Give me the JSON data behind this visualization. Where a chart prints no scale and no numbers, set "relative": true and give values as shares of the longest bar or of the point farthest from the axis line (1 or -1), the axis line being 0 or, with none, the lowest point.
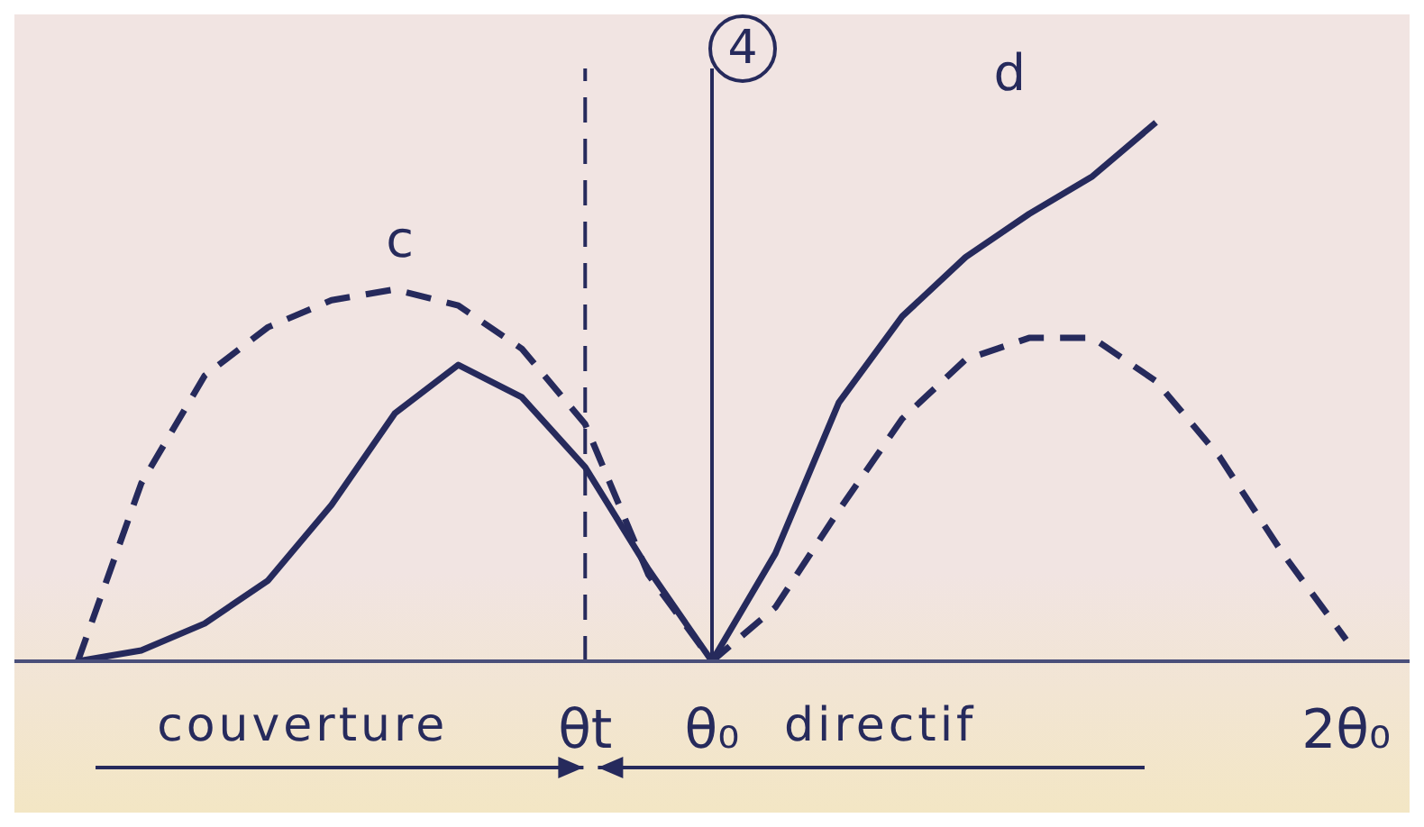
{
  "chart_data": {
    "type": "line",
    "relative": true,
    "legend": false,
    "categories": [
      null,
      null,
      null,
      null,
      null,
      null,
      null,
      null,
      null,
      "θt",
      null,
      "θ₀",
      null,
      null,
      null,
      null,
      null,
      null,
      null,
      null,
      null,
      "2θ₀",
      null
    ],
    "series": [
      {
        "name": "c",
        "color": "#262a5c",
        "line_style": "dashed",
        "values": [
          null,
          0,
          0.33,
          0.53,
          0.62,
          0.67,
          0.69,
          0.66,
          0.58,
          0.44,
          0.16,
          0,
          0.1,
          0.28,
          0.45,
          0.56,
          0.6,
          0.6,
          0.52,
          0.38,
          0.2,
          0.04,
          null
        ]
      },
      {
        "name": "d",
        "color": "#262a5c",
        "line_style": "solid",
        "values": [
          null,
          0,
          0.02,
          0.07,
          0.15,
          0.29,
          0.46,
          0.55,
          0.49,
          0.36,
          0.17,
          0,
          0.2,
          0.48,
          0.64,
          0.75,
          0.83,
          0.9,
          1,
          null,
          null,
          null,
          null
        ]
      }
    ],
    "ref_lines": [
      {
        "axis": "x",
        "value": "θ₀",
        "line_style": "solid"
      },
      {
        "axis": "x",
        "value": "θt",
        "line_style": "dashed"
      }
    ],
    "annotations": [
      "4",
      "couverture",
      "directif"
    ]
  }
}
